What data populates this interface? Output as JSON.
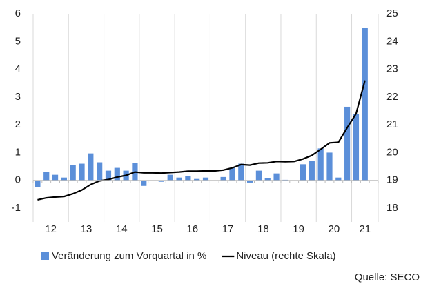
{
  "chart_data": {
    "type": "bar-line",
    "groups": [
      "12",
      "13",
      "14",
      "15",
      "16",
      "17",
      "18",
      "19",
      "20",
      "21"
    ],
    "quarters_per_group": 4,
    "series": [
      {
        "name": "Veränderung zum Vorquartal in %",
        "type": "bar",
        "color": "#5b8fd9",
        "values": [
          -0.25,
          0.3,
          0.2,
          0.1,
          0.55,
          0.6,
          0.97,
          0.65,
          0.35,
          0.45,
          0.35,
          0.63,
          -0.2,
          0,
          -0.05,
          0.2,
          0.1,
          0.15,
          0.05,
          0.1,
          0,
          0.12,
          0.45,
          0.6,
          -0.08,
          0.35,
          0.08,
          0.25,
          0.02,
          0,
          0.58,
          0.7,
          1.15,
          1.0,
          0.1,
          2.65,
          2.4,
          5.5,
          null
        ]
      },
      {
        "name": "Niveau (rechte Skala)",
        "type": "line",
        "axis": "y2",
        "color": "#000000",
        "values": [
          18.3,
          18.37,
          18.4,
          18.42,
          18.52,
          18.65,
          18.85,
          18.98,
          19.03,
          19.12,
          19.18,
          19.3,
          19.27,
          19.27,
          19.26,
          19.28,
          19.3,
          19.33,
          19.33,
          19.34,
          19.34,
          19.37,
          19.45,
          19.57,
          19.55,
          19.62,
          19.63,
          19.68,
          19.67,
          19.68,
          19.77,
          19.9,
          20.12,
          20.35,
          20.37,
          20.9,
          21.4,
          22.6,
          null
        ]
      }
    ],
    "ylim": [
      -1,
      6
    ],
    "yticks": [
      -1,
      0,
      1,
      2,
      3,
      4,
      5,
      6
    ],
    "y2lim": [
      18,
      25
    ],
    "y2ticks": [
      18,
      19,
      20,
      21,
      22,
      23,
      24,
      25
    ],
    "source": "Quelle: SECO"
  }
}
